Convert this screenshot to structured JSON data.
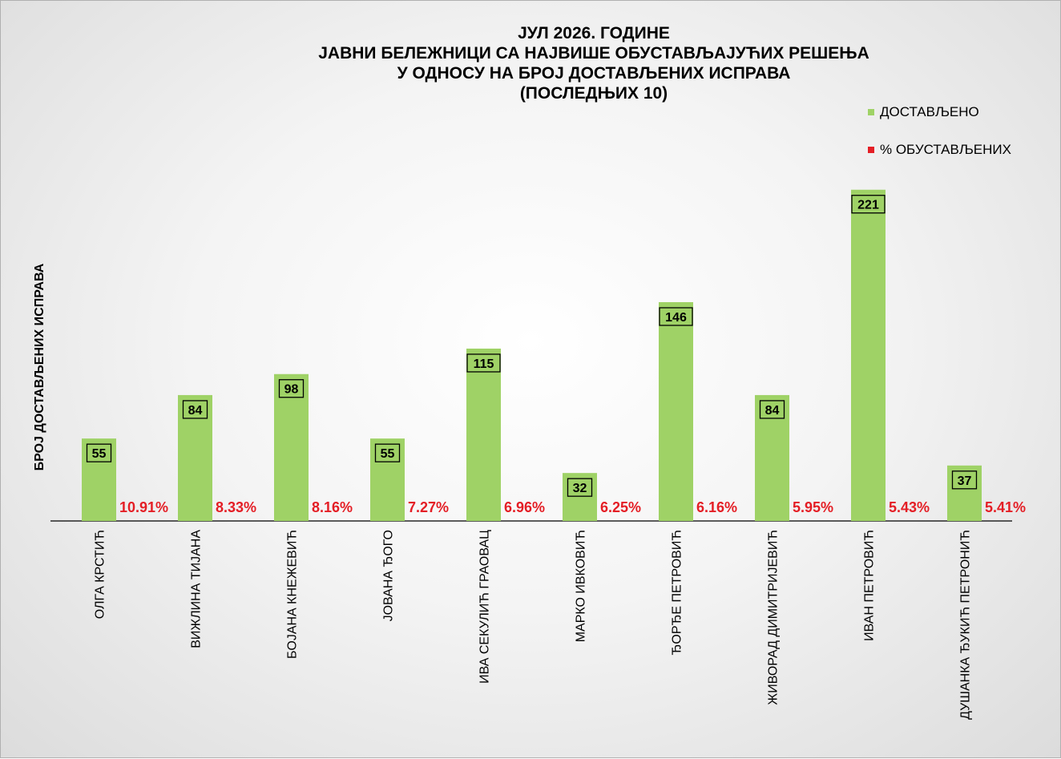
{
  "chart_data": {
    "type": "bar",
    "title_lines": [
      "ЈУЛ 2026. ГОДИНЕ",
      "ЈАВНИ БЕЛЕЖНИЦИ СА НАЈВИШЕ ОБУСТАВЉАЈУЋИХ РЕШЕЊА",
      "У ОДНОСУ НА БРОЈ ДОСТАВЉЕНИХ ИСПРАВА",
      "(ПОСЛЕДЊИХ 10)"
    ],
    "ylabel": "БРОЈ ДОСТАВЉЕНИХ  ИСПРАВА",
    "xlabel": "",
    "grid": false,
    "legend_position": "top-right",
    "categories": [
      "ОЛГА КРСТИЋ",
      "ВИЖЛИНА ТИЈАНА",
      "БОЈАНА КНЕЖЕВИЋ",
      "ЈОВАНА ЂОГО",
      "ИВА СЕКУЛИЋ ГРАОВАЦ",
      "МАРКО ИВКОВИЋ",
      "ЂОРЂЕ ПЕТРОВИЋ",
      "ЖИВОРАД ДИМИТРИЈЕВИЋ",
      "ИВАН ПЕТРОВИЋ",
      "ДУШАНКА ЂУКИЋ ПЕТРОНИЋ"
    ],
    "series": [
      {
        "name": "ДОСТАВЉЕНО",
        "color": "#9fd266",
        "values": [
          55,
          84,
          98,
          55,
          115,
          32,
          146,
          84,
          221,
          37
        ]
      },
      {
        "name": "% ОБУСТАВЉЕНИХ",
        "color": "#e41e25",
        "values": [
          10.91,
          8.33,
          8.16,
          7.27,
          6.96,
          6.25,
          6.16,
          5.95,
          5.43,
          5.41
        ],
        "labels": [
          "10.91%",
          "8.33%",
          "8.16%",
          "7.27%",
          "6.96%",
          "6.25%",
          "6.16%",
          "5.95%",
          "5.43%",
          "5.41%"
        ]
      }
    ]
  }
}
